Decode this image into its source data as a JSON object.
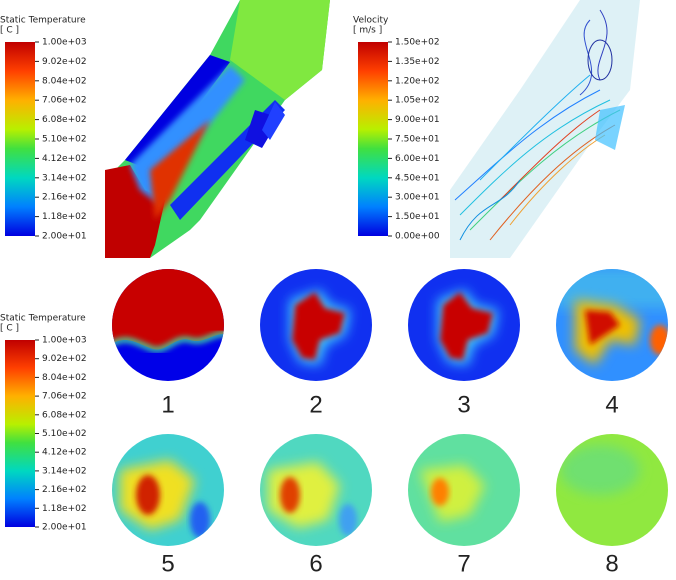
{
  "colorbars": [
    {
      "title": "Static Temperature",
      "unit": "[ C ]",
      "ticks": [
        "1.00e+03",
        "9.02e+02",
        "8.04e+02",
        "7.06e+02",
        "6.08e+02",
        "5.10e+02",
        "4.12e+02",
        "3.14e+02",
        "2.16e+02",
        "1.18e+02",
        "2.00e+01"
      ]
    },
    {
      "title": "Velocity",
      "unit": "[ m/s ]",
      "ticks": [
        "1.50e+02",
        "1.35e+02",
        "1.20e+02",
        "1.05e+02",
        "9.00e+01",
        "7.50e+01",
        "6.00e+01",
        "4.50e+01",
        "3.00e+01",
        "1.50e+01",
        "0.00e+00"
      ]
    },
    {
      "title": "Static Temperature",
      "unit": "[ C ]",
      "ticks": [
        "1.00e+03",
        "9.02e+02",
        "8.04e+02",
        "7.06e+02",
        "6.08e+02",
        "5.10e+02",
        "4.12e+02",
        "3.14e+02",
        "2.16e+02",
        "1.18e+02",
        "2.00e+01"
      ]
    }
  ],
  "panels": [
    "1",
    "2",
    "3",
    "4",
    "5",
    "6",
    "7",
    "8"
  ]
}
